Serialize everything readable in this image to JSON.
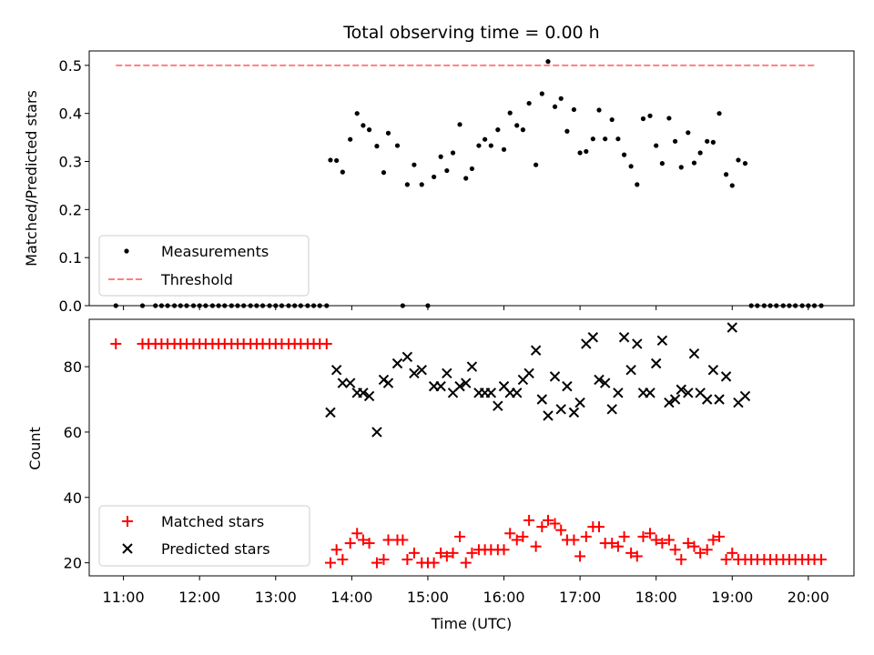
{
  "chart_data": [
    {
      "type": "scatter",
      "title": "Total observing time = 0.00 h",
      "ylabel": "Matched/Predicted stars",
      "xlabel": "",
      "xlim": [
        10.55,
        20.6
      ],
      "ylim": [
        0.0,
        0.53
      ],
      "yticks": [
        0.0,
        0.1,
        0.2,
        0.3,
        0.4,
        0.5
      ],
      "ytick_labels": [
        "0.0",
        "0.1",
        "0.2",
        "0.3",
        "0.4",
        "0.5"
      ],
      "legend_position": "lower-left",
      "series": [
        {
          "name": "Measurements",
          "marker": "dot",
          "color": "#000000",
          "x": [
            10.9,
            11.25,
            11.42,
            11.5,
            11.58,
            11.67,
            11.75,
            11.83,
            11.92,
            12.0,
            12.08,
            12.17,
            12.25,
            12.33,
            12.42,
            12.5,
            12.58,
            12.67,
            12.75,
            12.83,
            12.92,
            13.0,
            13.08,
            13.17,
            13.25,
            13.33,
            13.42,
            13.5,
            13.58,
            13.67,
            13.72,
            13.8,
            13.88,
            13.98,
            14.07,
            14.15,
            14.23,
            14.33,
            14.42,
            14.48,
            14.6,
            14.67,
            14.73,
            14.82,
            14.92,
            15.0,
            15.08,
            15.17,
            15.25,
            15.33,
            15.42,
            15.5,
            15.58,
            15.67,
            15.75,
            15.83,
            15.92,
            16.0,
            16.08,
            16.17,
            16.25,
            16.33,
            16.42,
            16.5,
            16.58,
            16.67,
            16.75,
            16.83,
            16.92,
            17.0,
            17.08,
            17.17,
            17.25,
            17.33,
            17.42,
            17.5,
            17.58,
            17.67,
            17.75,
            17.83,
            17.92,
            18.0,
            18.08,
            18.17,
            18.25,
            18.33,
            18.42,
            18.5,
            18.58,
            18.67,
            18.75,
            18.83,
            18.92,
            19.0,
            19.08,
            19.17,
            19.25,
            19.33,
            19.42,
            19.5,
            19.58,
            19.67,
            19.75,
            19.83,
            19.92,
            20.0,
            20.08,
            20.17
          ],
          "y": [
            0,
            0,
            0,
            0,
            0,
            0,
            0,
            0,
            0,
            0,
            0,
            0,
            0,
            0,
            0,
            0,
            0,
            0,
            0,
            0,
            0,
            0,
            0,
            0,
            0,
            0,
            0,
            0,
            0,
            0,
            0.303,
            0.302,
            0.278,
            0.346,
            0.4,
            0.375,
            0.366,
            0.332,
            0.277,
            0.359,
            0.333,
            0,
            0.252,
            0.293,
            0.252,
            0,
            0.268,
            0.31,
            0.281,
            0.318,
            0.377,
            0.265,
            0.285,
            0.333,
            0.346,
            0.333,
            0.366,
            0.325,
            0.401,
            0.375,
            0.366,
            0.421,
            0.293,
            0.441,
            0.508,
            0.414,
            0.431,
            0.363,
            0.408,
            0.318,
            0.321,
            0.347,
            0.407,
            0.347,
            0.387,
            0.347,
            0.314,
            0.29,
            0.252,
            0.389,
            0.395,
            0.333,
            0.296,
            0.39,
            0.342,
            0.288,
            0.36,
            0.297,
            0.318,
            0.342,
            0.34,
            0.4,
            0.273,
            0.25,
            0.303,
            0.296,
            0,
            0,
            0,
            0,
            0,
            0,
            0,
            0,
            0,
            0,
            0,
            0
          ]
        },
        {
          "name": "Threshold",
          "marker": "dashed-line",
          "color": "#ff7f7f",
          "x": [
            10.9,
            20.1
          ],
          "y": [
            0.5,
            0.5
          ]
        }
      ]
    },
    {
      "type": "scatter",
      "title": "",
      "ylabel": "Count",
      "xlabel": "Time (UTC)",
      "xlim": [
        10.55,
        20.6
      ],
      "ylim": [
        16,
        94.5
      ],
      "yticks": [
        20,
        40,
        60,
        80
      ],
      "ytick_labels": [
        "20",
        "40",
        "60",
        "80"
      ],
      "xticks": [
        11,
        12,
        13,
        14,
        15,
        16,
        17,
        18,
        19,
        20
      ],
      "xtick_labels": [
        "11:00",
        "12:00",
        "13:00",
        "14:00",
        "15:00",
        "16:00",
        "17:00",
        "18:00",
        "19:00",
        "20:00"
      ],
      "legend_position": "lower-left",
      "series": [
        {
          "name": "Matched stars",
          "marker": "plus",
          "color": "#ff0000",
          "x": [
            10.9,
            11.25,
            11.33,
            11.42,
            11.5,
            11.58,
            11.67,
            11.75,
            11.83,
            11.92,
            12.0,
            12.08,
            12.17,
            12.25,
            12.33,
            12.42,
            12.5,
            12.58,
            12.67,
            12.75,
            12.83,
            12.92,
            13.0,
            13.08,
            13.17,
            13.25,
            13.33,
            13.42,
            13.5,
            13.58,
            13.67,
            13.72,
            13.8,
            13.88,
            13.98,
            14.07,
            14.15,
            14.23,
            14.33,
            14.42,
            14.48,
            14.6,
            14.67,
            14.73,
            14.82,
            14.92,
            15.0,
            15.08,
            15.17,
            15.25,
            15.33,
            15.42,
            15.5,
            15.58,
            15.67,
            15.75,
            15.83,
            15.92,
            16.0,
            16.08,
            16.17,
            16.25,
            16.33,
            16.42,
            16.5,
            16.58,
            16.67,
            16.75,
            16.83,
            16.92,
            17.0,
            17.08,
            17.17,
            17.25,
            17.33,
            17.42,
            17.5,
            17.58,
            17.67,
            17.75,
            17.83,
            17.92,
            18.0,
            18.08,
            18.17,
            18.25,
            18.33,
            18.42,
            18.5,
            18.58,
            18.67,
            18.75,
            18.83,
            18.92,
            19.0,
            19.08,
            19.17,
            19.25,
            19.33,
            19.42,
            19.5,
            19.58,
            19.67,
            19.75,
            19.83,
            19.92,
            20.0,
            20.08,
            20.17
          ],
          "y": [
            87,
            87,
            87,
            87,
            87,
            87,
            87,
            87,
            87,
            87,
            87,
            87,
            87,
            87,
            87,
            87,
            87,
            87,
            87,
            87,
            87,
            87,
            87,
            87,
            87,
            87,
            87,
            87,
            87,
            87,
            87,
            20,
            24,
            21,
            26,
            29,
            27,
            26,
            20,
            21,
            27,
            27,
            27,
            21,
            23,
            20,
            20,
            20,
            23,
            22,
            23,
            28,
            20,
            23,
            24,
            24,
            24,
            24,
            24,
            29,
            27,
            28,
            33,
            25,
            31,
            33,
            32,
            30,
            27,
            27,
            22,
            28,
            31,
            31,
            26,
            26,
            25,
            28,
            23,
            22,
            28,
            29,
            27,
            26,
            27,
            24,
            21,
            26,
            25,
            23,
            24,
            27,
            28,
            21,
            23,
            21,
            21,
            21,
            21,
            21,
            21,
            21,
            21,
            21,
            21,
            21,
            21,
            21,
            21
          ]
        },
        {
          "name": "Predicted stars",
          "marker": "x",
          "color": "#000000",
          "x": [
            13.72,
            13.8,
            13.88,
            13.98,
            14.07,
            14.15,
            14.23,
            14.33,
            14.42,
            14.48,
            14.6,
            14.73,
            14.82,
            14.92,
            15.08,
            15.17,
            15.25,
            15.33,
            15.42,
            15.5,
            15.58,
            15.67,
            15.75,
            15.83,
            15.92,
            16.0,
            16.08,
            16.17,
            16.25,
            16.33,
            16.42,
            16.5,
            16.58,
            16.67,
            16.75,
            16.83,
            16.92,
            17.0,
            17.08,
            17.17,
            17.25,
            17.33,
            17.42,
            17.5,
            17.58,
            17.67,
            17.75,
            17.83,
            17.92,
            18.0,
            18.08,
            18.17,
            18.25,
            18.33,
            18.42,
            18.5,
            18.58,
            18.67,
            18.75,
            18.83,
            18.92,
            19.0,
            19.08,
            19.17
          ],
          "y": [
            66,
            79,
            75,
            75,
            72,
            72,
            71,
            60,
            76,
            75,
            81,
            83,
            78,
            79,
            74,
            74,
            78,
            72,
            74,
            75,
            80,
            72,
            72,
            72,
            68,
            74,
            72,
            72,
            76,
            78,
            85,
            70,
            65,
            77,
            67,
            74,
            66,
            69,
            87,
            89,
            76,
            75,
            67,
            72,
            89,
            79,
            87,
            72,
            72,
            81,
            88,
            69,
            70,
            73,
            72,
            84,
            72,
            70,
            79,
            70,
            77,
            92,
            69,
            71
          ]
        }
      ]
    }
  ]
}
